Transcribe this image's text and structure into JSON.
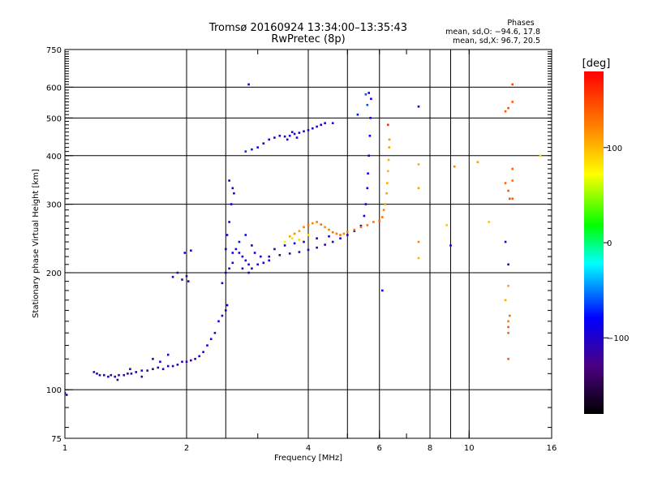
{
  "chart_data": {
    "type": "scatter",
    "title": "Tromsø 20160924 13:34:00–13:35:43",
    "subtitle": "RwPretec (8p)",
    "xlabel": "Frequency [MHz]",
    "ylabel": "Stationary phase Virtual Height [km]",
    "x_scale": "log",
    "y_scale": "log",
    "xlim": [
      1,
      16
    ],
    "ylim": [
      75,
      750
    ],
    "x_ticks": [
      1,
      2,
      4,
      6,
      8,
      10,
      16
    ],
    "x_tick_labels": [
      "1",
      "2",
      "4",
      "6",
      "8",
      "10",
      "16"
    ],
    "x_grid": [
      1,
      2,
      2.5,
      4,
      5,
      6,
      8,
      9,
      10
    ],
    "y_ticks": [
      75,
      100,
      200,
      300,
      400,
      500,
      600,
      750
    ],
    "y_tick_labels": [
      "75",
      "100",
      "200",
      "300",
      "400",
      "500",
      "600",
      "750"
    ],
    "grid": true,
    "stats": {
      "heading": "Phases",
      "line_o": "mean, sd,O: −94.6, 17.8",
      "line_x": "mean, sd,X: 96.7, 20.5"
    },
    "colorbar": {
      "label": "[deg]",
      "range": [
        -180,
        180
      ],
      "ticks": [
        -100,
        0,
        100
      ],
      "tick_labels": [
        "−100",
        "0",
        "100"
      ]
    },
    "series": [
      {
        "points": [
          [
            1.0,
            98,
            -100
          ],
          [
            1.01,
            97,
            -100
          ],
          [
            1.18,
            111,
            -110
          ],
          [
            1.2,
            110,
            -110
          ],
          [
            1.22,
            109,
            -110
          ],
          [
            1.25,
            109,
            -115
          ],
          [
            1.28,
            108,
            -110
          ],
          [
            1.3,
            109,
            -110
          ],
          [
            1.33,
            108,
            -115
          ],
          [
            1.36,
            109,
            -110
          ],
          [
            1.4,
            109,
            -110
          ],
          [
            1.43,
            110,
            -115
          ],
          [
            1.46,
            110,
            -110
          ],
          [
            1.5,
            111,
            -110
          ],
          [
            1.55,
            112,
            -110
          ],
          [
            1.6,
            112,
            -115
          ],
          [
            1.65,
            113,
            -110
          ],
          [
            1.7,
            114,
            -110
          ],
          [
            1.75,
            113,
            -110
          ],
          [
            1.8,
            115,
            -110
          ],
          [
            1.85,
            115,
            -110
          ],
          [
            1.9,
            116,
            -110
          ],
          [
            1.95,
            118,
            -110
          ],
          [
            2.0,
            118,
            -110
          ],
          [
            2.05,
            119,
            -110
          ],
          [
            2.1,
            120,
            -110
          ],
          [
            2.15,
            122,
            -110
          ],
          [
            1.35,
            106,
            -120
          ],
          [
            1.45,
            113,
            -105
          ],
          [
            1.55,
            108,
            -120
          ],
          [
            1.65,
            120,
            -105
          ],
          [
            1.72,
            118,
            -105
          ],
          [
            1.8,
            123,
            -100
          ],
          [
            1.85,
            195,
            -115
          ],
          [
            1.9,
            200,
            -115
          ],
          [
            1.95,
            192,
            -115
          ],
          [
            2.0,
            196,
            -115
          ],
          [
            2.02,
            190,
            -115
          ],
          [
            1.98,
            225,
            -100
          ],
          [
            2.05,
            228,
            -100
          ],
          [
            2.2,
            125,
            -100
          ],
          [
            2.25,
            130,
            -100
          ],
          [
            2.3,
            135,
            -95
          ],
          [
            2.35,
            140,
            -100
          ],
          [
            2.4,
            150,
            -95
          ],
          [
            2.45,
            155,
            -100
          ],
          [
            2.5,
            160,
            -90
          ],
          [
            2.52,
            165,
            -90
          ],
          [
            2.45,
            188,
            -95
          ],
          [
            2.5,
            200,
            -95
          ],
          [
            2.55,
            205,
            -100
          ],
          [
            2.6,
            212,
            -95
          ],
          [
            2.5,
            230,
            -90
          ],
          [
            2.52,
            250,
            -90
          ],
          [
            2.55,
            270,
            -95
          ],
          [
            2.58,
            300,
            -85
          ],
          [
            2.6,
            330,
            -90
          ],
          [
            2.55,
            345,
            -80
          ],
          [
            2.62,
            320,
            -95
          ],
          [
            2.65,
            230,
            -95
          ],
          [
            2.7,
            225,
            -95
          ],
          [
            2.75,
            220,
            -90
          ],
          [
            2.8,
            215,
            -90
          ],
          [
            2.85,
            210,
            -85
          ],
          [
            2.9,
            205,
            -95
          ],
          [
            3.0,
            210,
            -100
          ],
          [
            3.1,
            212,
            -90
          ],
          [
            3.2,
            215,
            -95
          ],
          [
            2.6,
            225,
            -80
          ],
          [
            2.7,
            240,
            -75
          ],
          [
            2.8,
            250,
            -80
          ],
          [
            2.9,
            235,
            -85
          ],
          [
            2.75,
            205,
            -90
          ],
          [
            2.85,
            200,
            -95
          ],
          [
            2.95,
            225,
            -80
          ],
          [
            3.05,
            220,
            -90
          ],
          [
            2.85,
            610,
            -90
          ],
          [
            2.8,
            410,
            -70
          ],
          [
            2.9,
            415,
            -75
          ],
          [
            3.0,
            420,
            -85
          ],
          [
            3.1,
            430,
            -90
          ],
          [
            3.2,
            440,
            -95
          ],
          [
            3.3,
            445,
            -95
          ],
          [
            3.4,
            450,
            -95
          ],
          [
            3.5,
            448,
            -100
          ],
          [
            3.6,
            450,
            -100
          ],
          [
            3.7,
            455,
            -100
          ],
          [
            3.8,
            458,
            -95
          ],
          [
            3.9,
            462,
            -95
          ],
          [
            4.0,
            465,
            -100
          ],
          [
            4.1,
            470,
            -95
          ],
          [
            4.2,
            475,
            -95
          ],
          [
            4.3,
            480,
            -100
          ],
          [
            4.4,
            485,
            -100
          ],
          [
            3.55,
            440,
            -95
          ],
          [
            3.65,
            460,
            -100
          ],
          [
            3.75,
            445,
            -100
          ],
          [
            3.2,
            220,
            -110
          ],
          [
            3.4,
            222,
            -110
          ],
          [
            3.6,
            224,
            -110
          ],
          [
            3.8,
            226,
            -110
          ],
          [
            4.0,
            229,
            -110
          ],
          [
            4.2,
            232,
            -110
          ],
          [
            4.4,
            236,
            -110
          ],
          [
            4.6,
            240,
            -105
          ],
          [
            4.8,
            245,
            -100
          ],
          [
            5.0,
            250,
            -100
          ],
          [
            5.2,
            256,
            -95
          ],
          [
            5.4,
            264,
            -90
          ],
          [
            5.5,
            280,
            -85
          ],
          [
            5.55,
            300,
            -85
          ],
          [
            5.6,
            330,
            -80
          ],
          [
            5.62,
            360,
            -80
          ],
          [
            5.65,
            400,
            -80
          ],
          [
            5.68,
            450,
            -80
          ],
          [
            5.7,
            500,
            -85
          ],
          [
            5.72,
            560,
            -85
          ],
          [
            3.3,
            230,
            -100
          ],
          [
            3.5,
            235,
            -95
          ],
          [
            3.7,
            238,
            -95
          ],
          [
            3.9,
            240,
            -95
          ],
          [
            4.2,
            245,
            -95
          ],
          [
            4.5,
            248,
            -100
          ],
          [
            4.6,
            485,
            -85
          ],
          [
            5.3,
            510,
            -75
          ],
          [
            5.55,
            575,
            -60
          ],
          [
            5.6,
            540,
            -60
          ],
          [
            5.65,
            580,
            -80
          ],
          [
            6.1,
            180,
            -80
          ],
          [
            7.5,
            535,
            -110
          ],
          [
            9.0,
            235,
            -80
          ],
          [
            12.3,
            240,
            -110
          ],
          [
            12.5,
            210,
            -110
          ]
        ]
      },
      {
        "points": [
          [
            3.6,
            248,
            110
          ],
          [
            3.7,
            252,
            120
          ],
          [
            3.8,
            256,
            115
          ],
          [
            3.9,
            262,
            125
          ],
          [
            4.0,
            265,
            130
          ],
          [
            4.1,
            268,
            120
          ],
          [
            4.2,
            270,
            125
          ],
          [
            4.3,
            266,
            130
          ],
          [
            4.4,
            262,
            120
          ],
          [
            4.5,
            258,
            125
          ],
          [
            4.6,
            254,
            130
          ],
          [
            4.7,
            252,
            125
          ],
          [
            4.8,
            250,
            130
          ],
          [
            4.9,
            252,
            120
          ],
          [
            3.5,
            240,
            80
          ],
          [
            3.65,
            245,
            85
          ],
          [
            3.8,
            243,
            90
          ],
          [
            4.0,
            250,
            85
          ],
          [
            5.0,
            255,
            125
          ],
          [
            5.2,
            258,
            130
          ],
          [
            5.4,
            262,
            130
          ],
          [
            5.6,
            265,
            130
          ],
          [
            5.8,
            270,
            130
          ],
          [
            6.0,
            272,
            135
          ],
          [
            6.1,
            278,
            130
          ],
          [
            6.15,
            290,
            120
          ],
          [
            6.2,
            300,
            110
          ],
          [
            6.25,
            320,
            110
          ],
          [
            6.27,
            340,
            105
          ],
          [
            6.3,
            365,
            100
          ],
          [
            6.32,
            390,
            105
          ],
          [
            6.34,
            420,
            110
          ],
          [
            6.35,
            440,
            115
          ],
          [
            6.3,
            480,
            160
          ],
          [
            7.5,
            380,
            105
          ],
          [
            7.5,
            240,
            120
          ],
          [
            7.5,
            218,
            100
          ],
          [
            7.5,
            330,
            110
          ],
          [
            8.8,
            265,
            95
          ],
          [
            9.2,
            375,
            120
          ],
          [
            10.5,
            385,
            110
          ],
          [
            11.2,
            270,
            95
          ],
          [
            12.3,
            520,
            140
          ],
          [
            12.5,
            530,
            145
          ],
          [
            12.8,
            610,
            150
          ],
          [
            12.8,
            550,
            140
          ],
          [
            12.3,
            340,
            135
          ],
          [
            12.5,
            325,
            140
          ],
          [
            12.6,
            310,
            145
          ],
          [
            12.8,
            310,
            140
          ],
          [
            12.8,
            370,
            135
          ],
          [
            12.8,
            345,
            130
          ],
          [
            12.5,
            185,
            110
          ],
          [
            12.3,
            170,
            105
          ],
          [
            12.6,
            155,
            130
          ],
          [
            12.5,
            150,
            125
          ],
          [
            12.5,
            145,
            140
          ],
          [
            12.5,
            140,
            135
          ],
          [
            12.5,
            120,
            140
          ],
          [
            15.0,
            400,
            85
          ]
        ]
      }
    ]
  },
  "colors": {
    "colormap": [
      "#000000",
      "#4b0082",
      "#0000ff",
      "#00ffff",
      "#00ff00",
      "#ffff00",
      "#ff8000",
      "#ff0000"
    ]
  }
}
